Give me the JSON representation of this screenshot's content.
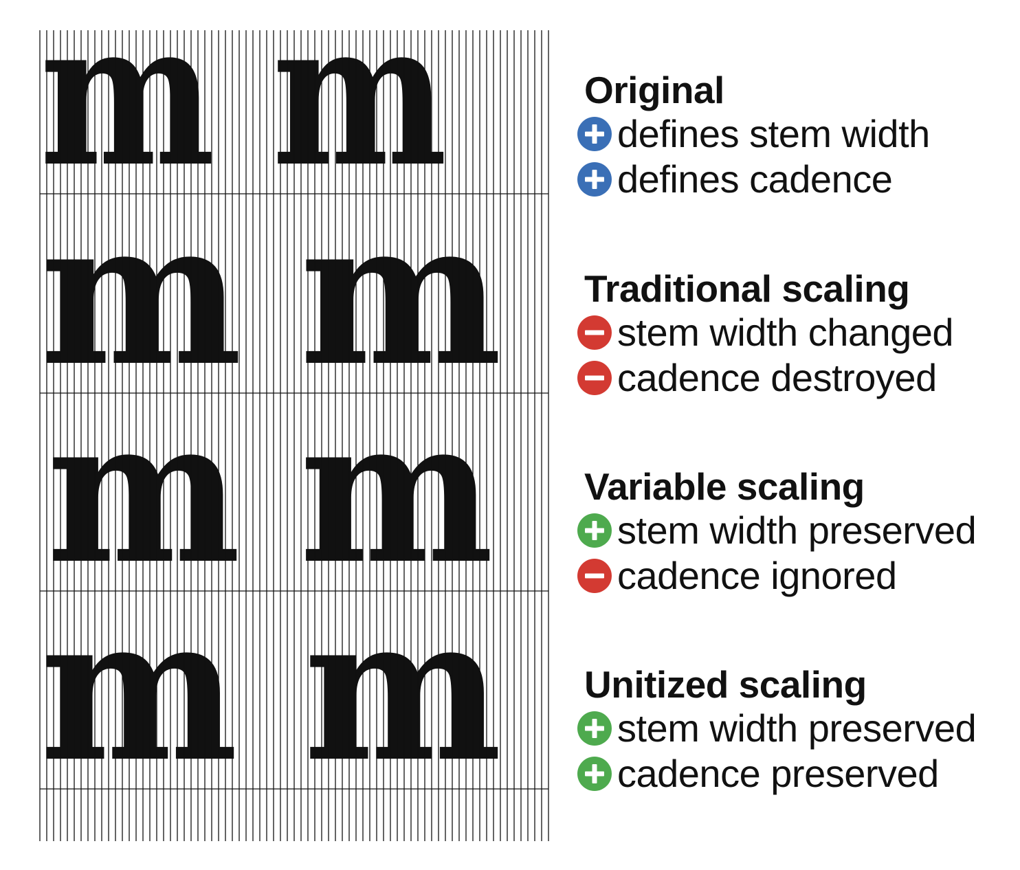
{
  "colors": {
    "plus_original": "#3a6fb6",
    "minus": "#d33a32",
    "plus_good": "#4eaa4e",
    "ink": "#111111"
  },
  "rows": [
    {
      "glyphs": [
        "m",
        "m",
        "m"
      ],
      "title": "Original",
      "items": [
        {
          "sign": "plus",
          "color": "#3a6fb6",
          "icon": "plus-circle-icon",
          "text": "defines stem width"
        },
        {
          "sign": "plus",
          "color": "#3a6fb6",
          "icon": "plus-circle-icon",
          "text": "defines cadence"
        }
      ]
    },
    {
      "glyphs": [
        "m",
        "m",
        "m"
      ],
      "title": "Traditional scaling",
      "items": [
        {
          "sign": "minus",
          "color": "#d33a32",
          "icon": "minus-circle-icon",
          "text": "stem width changed"
        },
        {
          "sign": "minus",
          "color": "#d33a32",
          "icon": "minus-circle-icon",
          "text": "cadence destroyed"
        }
      ]
    },
    {
      "glyphs": [
        "m",
        "m",
        "m"
      ],
      "title": "Variable scaling",
      "items": [
        {
          "sign": "plus",
          "color": "#4eaa4e",
          "icon": "plus-circle-icon",
          "text": "stem width preserved"
        },
        {
          "sign": "minus",
          "color": "#d33a32",
          "icon": "minus-circle-icon",
          "text": "cadence ignored"
        }
      ]
    },
    {
      "glyphs": [
        "m",
        "m",
        "m"
      ],
      "title": "Unitized scaling",
      "items": [
        {
          "sign": "plus",
          "color": "#4eaa4e",
          "icon": "plus-circle-icon",
          "text": "stem width preserved"
        },
        {
          "sign": "plus",
          "color": "#4eaa4e",
          "icon": "plus-circle-icon",
          "text": "cadence preserved"
        }
      ]
    }
  ]
}
